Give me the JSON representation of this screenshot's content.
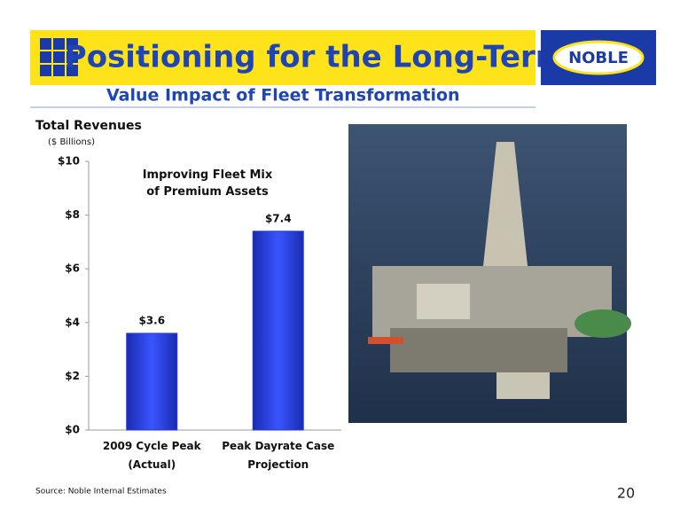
{
  "slide": {
    "title": "Positioning for the Long-Term",
    "subtitle": "Value Impact of Fleet Transformation",
    "logo": "NOBLE",
    "source": "Source: Noble Internal Estimates",
    "page_number": 20
  },
  "chart_data": {
    "type": "bar",
    "title": "Total Revenues",
    "subtitle": "($ Billions)",
    "annotation": "Improving Fleet Mix of Premium Assets",
    "categories": [
      "2009 Cycle Peak (Actual)",
      "Peak Dayrate Case Projection"
    ],
    "values": [
      3.6,
      7.4
    ],
    "value_labels": [
      "$3.6",
      "$7.4"
    ],
    "color": "#2438e0",
    "ylim": [
      0,
      10
    ],
    "yticks": [
      {
        "value": 0,
        "label": "$0"
      },
      {
        "value": 2,
        "label": "$2"
      },
      {
        "value": 4,
        "label": "$4"
      },
      {
        "value": 6,
        "label": "$6"
      },
      {
        "value": 8,
        "label": "$8"
      },
      {
        "value": 10,
        "label": "$10"
      }
    ],
    "grid": false
  }
}
